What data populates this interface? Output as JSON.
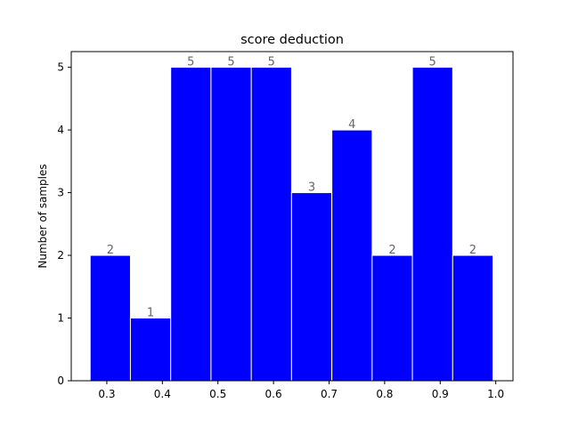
{
  "chart_data": {
    "type": "bar",
    "title": "score deduction",
    "xlabel": "",
    "ylabel": "Number of samples",
    "bar_color": "#0000ff",
    "label_color": "#666666",
    "bins": [
      {
        "left": 0.27,
        "right": 0.3425,
        "value": 2
      },
      {
        "left": 0.3425,
        "right": 0.415,
        "value": 1
      },
      {
        "left": 0.415,
        "right": 0.4875,
        "value": 5
      },
      {
        "left": 0.4875,
        "right": 0.56,
        "value": 5
      },
      {
        "left": 0.56,
        "right": 0.6325,
        "value": 5
      },
      {
        "left": 0.6325,
        "right": 0.705,
        "value": 3
      },
      {
        "left": 0.705,
        "right": 0.7775,
        "value": 4
      },
      {
        "left": 0.7775,
        "right": 0.85,
        "value": 2
      },
      {
        "left": 0.85,
        "right": 0.9225,
        "value": 5
      },
      {
        "left": 0.9225,
        "right": 0.995,
        "value": 2
      }
    ],
    "xlim": [
      0.236,
      1.031
    ],
    "ylim": [
      0,
      5.25
    ],
    "xticks": [
      "0.3",
      "0.4",
      "0.5",
      "0.6",
      "0.7",
      "0.8",
      "0.9",
      "1.0"
    ],
    "yticks": [
      "0",
      "1",
      "2",
      "3",
      "4",
      "5"
    ],
    "grid": false,
    "legend": "none"
  }
}
